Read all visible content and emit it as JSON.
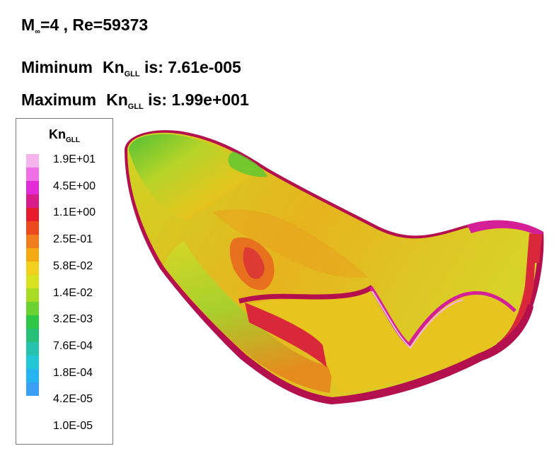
{
  "header": {
    "flow_prefix": "M",
    "flow_sub": "∞",
    "flow_rest": "=4 , Re=59373",
    "min_label": "Miminum",
    "max_label": "Maximum",
    "kn": "Kn",
    "kn_sub": "GLL",
    "is_label": "is:",
    "min_value": "7.61e-005",
    "max_value": "1.99e+001"
  },
  "legend": {
    "title": "Kn",
    "title_sub": "GLL",
    "ticks": [
      "1.9E+01",
      "4.5E+00",
      "1.1E+00",
      "2.5E-01",
      "5.8E-02",
      "1.4E-02",
      "3.2E-03",
      "7.6E-04",
      "1.8E-04",
      "4.2E-05",
      "1.0E-05"
    ],
    "colors": [
      "#f5b4ec",
      "#f06ee6",
      "#e22ad8",
      "#d81d8a",
      "#e61c2c",
      "#eb4a1e",
      "#f17d1e",
      "#f5aa14",
      "#f2d11e",
      "#d8e21e",
      "#a8dc24",
      "#6cd232",
      "#2ec846",
      "#28c078",
      "#26c2ac",
      "#22c8d8",
      "#24b4f0",
      "#3aa0f6"
    ]
  },
  "body_colors": {
    "outline": "#b4104e",
    "magenta": "#d41f96",
    "red": "#d8283a",
    "orange": "#e8641e",
    "yellow": "#e6c81e",
    "yellow_green": "#c8d824",
    "green": "#5ac832",
    "light_green": "#9fd23a"
  }
}
